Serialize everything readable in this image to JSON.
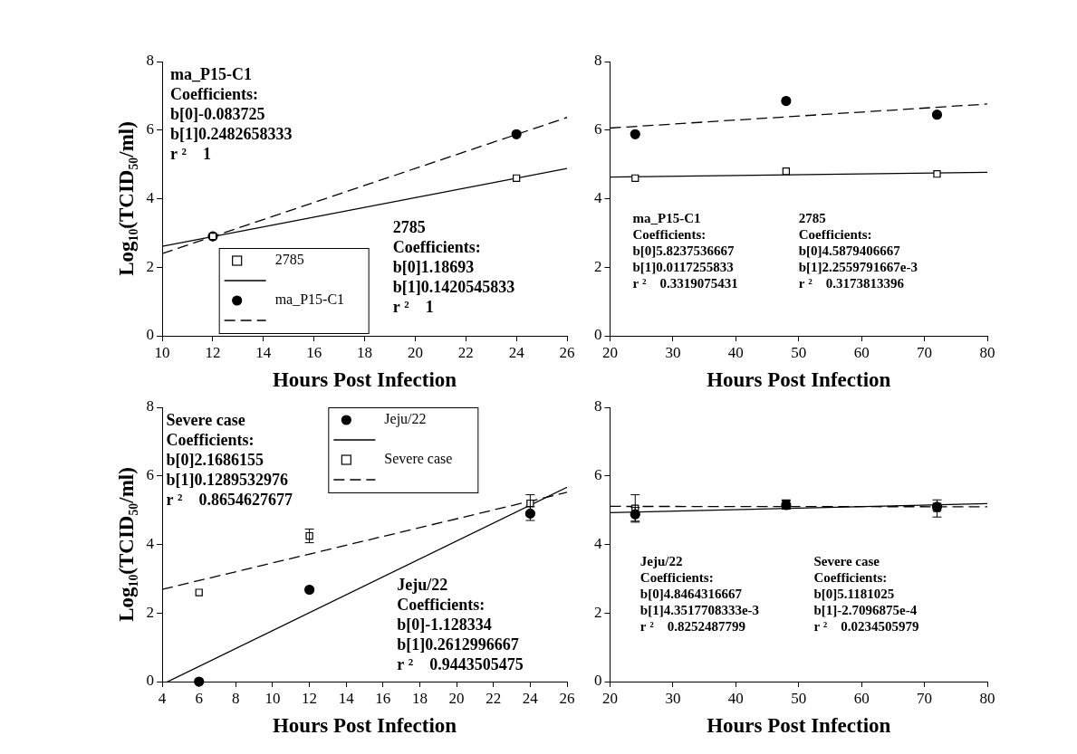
{
  "chart_data": [
    {
      "type": "scatter",
      "x_label": "Hours Post Infection",
      "y_label": "Log₁₀(TCID₅₀/ml)",
      "xlim": [
        10,
        26
      ],
      "xticks": [
        10,
        12,
        14,
        16,
        18,
        20,
        22,
        24,
        26
      ],
      "ylim": [
        0,
        8
      ],
      "yticks": [
        0,
        2,
        4,
        6,
        8
      ],
      "grid": false,
      "legend": "lower left",
      "series": [
        {
          "name": "2785",
          "color": "#000000",
          "marker": "square",
          "x": [
            12,
            24
          ],
          "values": [
            2.9,
            4.6
          ],
          "fit": {
            "line_style": "solid",
            "x": [
              10,
              26
            ],
            "values": [
              2.61,
              4.88
            ]
          }
        },
        {
          "name": "ma_P15-C1",
          "color": "#000000",
          "marker": "circle",
          "x": [
            12,
            24
          ],
          "values": [
            2.9,
            5.88
          ],
          "fit": {
            "line_style": "dashed",
            "x": [
              10,
              26
            ],
            "values": [
              2.4,
              6.37
            ]
          }
        }
      ],
      "annotations": [
        [
          "ma_P15-C1",
          "Coefficients:",
          "b[0]-0.083725",
          "b[1]0.2482658333",
          "r ²    1"
        ],
        [
          "2785",
          "Coefficients:",
          "b[0]1.18693",
          "b[1]0.1420545833",
          "r ²    1"
        ]
      ]
    },
    {
      "type": "scatter",
      "x_label": "Hours Post Infection",
      "xlim": [
        20,
        80
      ],
      "xticks": [
        20,
        30,
        40,
        50,
        60,
        70,
        80
      ],
      "ylim": [
        0,
        8
      ],
      "yticks": [
        0,
        2,
        4,
        6,
        8
      ],
      "grid": false,
      "series": [
        {
          "name": "2785",
          "color": "#000000",
          "marker": "square",
          "x": [
            24,
            48,
            72
          ],
          "values": [
            4.6,
            4.8,
            4.72
          ],
          "fit": {
            "line_style": "solid",
            "x": [
              20,
              80
            ],
            "values": [
              4.63,
              4.77
            ]
          }
        },
        {
          "name": "ma_P15-C1",
          "color": "#000000",
          "marker": "circle",
          "x": [
            24,
            48,
            72
          ],
          "values": [
            5.88,
            6.85,
            6.45
          ],
          "fit": {
            "line_style": "dashed",
            "x": [
              20,
              80
            ],
            "values": [
              6.06,
              6.76
            ]
          }
        }
      ],
      "annotations": [
        [
          "ma_P15-C1",
          "Coefficients:",
          "b[0]5.8237536667",
          "b[1]0.0117255833",
          "r ²    0.3319075431"
        ],
        [
          "2785",
          "Coefficients:",
          "b[0]4.5879406667",
          "b[1]2.2559791667e-3",
          "r ²    0.3173813396"
        ]
      ]
    },
    {
      "type": "scatter",
      "x_label": "Hours Post Infection",
      "y_label": "Log₁₀(TCID₅₀/ml)",
      "xlim": [
        4,
        26
      ],
      "xticks": [
        4,
        6,
        8,
        10,
        12,
        14,
        16,
        18,
        20,
        22,
        24,
        26
      ],
      "ylim": [
        0,
        8
      ],
      "yticks": [
        0,
        2,
        4,
        6,
        8
      ],
      "grid": false,
      "legend": "upper center",
      "series": [
        {
          "name": "Jeju/22",
          "color": "#000000",
          "marker": "circle",
          "x": [
            6,
            12,
            24
          ],
          "values": [
            0,
            2.68,
            4.9
          ],
          "errors": [
            null,
            null,
            0.2
          ],
          "fit": {
            "line_style": "solid",
            "x": [
              4,
              26
            ],
            "values": [
              -0.08,
              5.67
            ]
          }
        },
        {
          "name": "Severe case",
          "color": "#000000",
          "marker": "square",
          "x": [
            6,
            12,
            24
          ],
          "values": [
            2.6,
            4.25,
            5.2
          ],
          "errors": [
            null,
            0.2,
            0.25
          ],
          "fit": {
            "line_style": "dashed",
            "x": [
              4,
              26
            ],
            "values": [
              2.69,
              5.52
            ]
          }
        }
      ],
      "annotations": [
        [
          "Severe case",
          "Coefficients:",
          "b[0]2.1686155",
          "b[1]0.1289532976",
          "r ²    0.8654627677"
        ],
        [
          "Jeju/22",
          "Coefficients:",
          "b[0]-1.128334",
          "b[1]0.2612996667",
          "r ²    0.9443505475"
        ]
      ]
    },
    {
      "type": "scatter",
      "x_label": "Hours Post Infection",
      "xlim": [
        20,
        80
      ],
      "xticks": [
        20,
        30,
        40,
        50,
        60,
        70,
        80
      ],
      "ylim": [
        0,
        8
      ],
      "yticks": [
        0,
        2,
        4,
        6,
        8
      ],
      "grid": false,
      "series": [
        {
          "name": "Jeju/22",
          "color": "#000000",
          "marker": "circle",
          "x": [
            24,
            48,
            72
          ],
          "values": [
            4.88,
            5.15,
            5.1
          ],
          "errors": [
            0.2,
            0.12,
            0.1
          ],
          "fit": {
            "line_style": "solid",
            "x": [
              20,
              80
            ],
            "values": [
              4.93,
              5.19
            ]
          }
        },
        {
          "name": "Severe case",
          "color": "#000000",
          "marker": "square",
          "x": [
            24,
            48,
            72
          ],
          "values": [
            5.05,
            5.2,
            5.05
          ],
          "errors": [
            0.4,
            0.1,
            0.25
          ],
          "fit": {
            "line_style": "dashed",
            "x": [
              20,
              80
            ],
            "values": [
              5.11,
              5.1
            ]
          }
        }
      ],
      "annotations": [
        [
          "Jeju/22",
          "Coefficients:",
          "b[0]4.8464316667",
          "b[1]4.3517708333e-3",
          "r ²    0.8252487799"
        ],
        [
          "Severe case",
          "Coefficients:",
          "b[0]5.1181025",
          "b[1]-2.7096875e-4",
          "r ²    0.0234505979"
        ]
      ]
    }
  ]
}
